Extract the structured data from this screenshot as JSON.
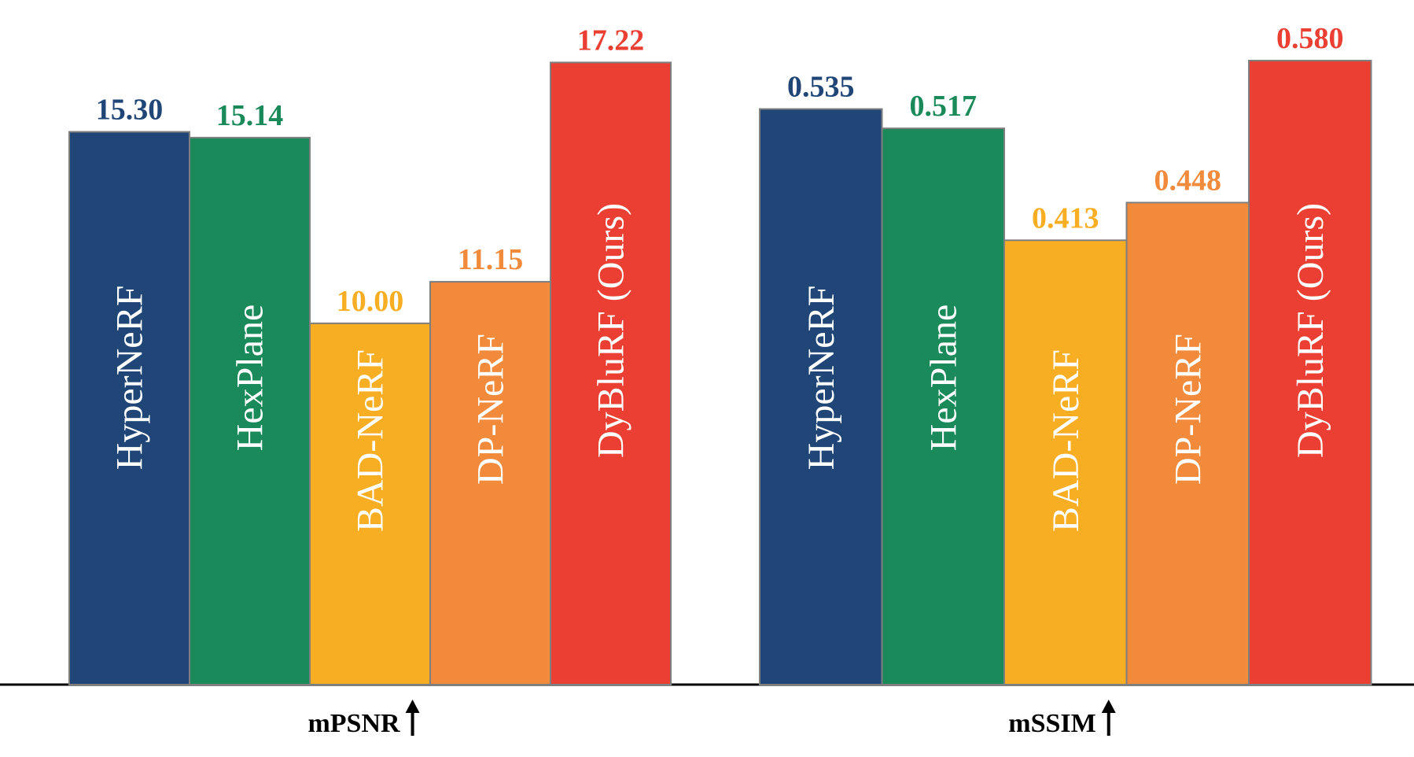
{
  "chart_data": [
    {
      "type": "bar",
      "metric": "mPSNR",
      "arrow": "↑",
      "categories": [
        "HyperNeRF",
        "HexPlane",
        "BAD-NeRF",
        "DP-NeRF",
        "DyBluRF (Ours)"
      ],
      "values": [
        15.3,
        15.14,
        10.0,
        11.15,
        17.22
      ],
      "value_labels": [
        "15.30",
        "15.14",
        "10.00",
        "11.15",
        "17.22"
      ],
      "colors": [
        "#1f4677",
        "#1b8a5a",
        "#f8ae22",
        "#f28a3b",
        "#ea3f32"
      ],
      "label_colors": [
        "#1f4677",
        "#1b8a5a",
        "#f8ae22",
        "#f28a3b",
        "#ea3f32"
      ],
      "ylim": [
        0,
        18
      ]
    },
    {
      "type": "bar",
      "metric": "mSSIM",
      "arrow": "↑",
      "categories": [
        "HyperNeRF",
        "HexPlane",
        "BAD-NeRF",
        "DP-NeRF",
        "DyBluRF (Ours)"
      ],
      "values": [
        0.535,
        0.517,
        0.413,
        0.448,
        0.58
      ],
      "value_labels": [
        "0.535",
        "0.517",
        "0.413",
        "0.448",
        "0.580"
      ],
      "colors": [
        "#1f4677",
        "#1b8a5a",
        "#f8ae22",
        "#f28a3b",
        "#ea3f32"
      ],
      "label_colors": [
        "#1f4677",
        "#1b8a5a",
        "#f8ae22",
        "#f28a3b",
        "#ea3f32"
      ],
      "ylim": [
        0,
        0.6
      ]
    }
  ]
}
